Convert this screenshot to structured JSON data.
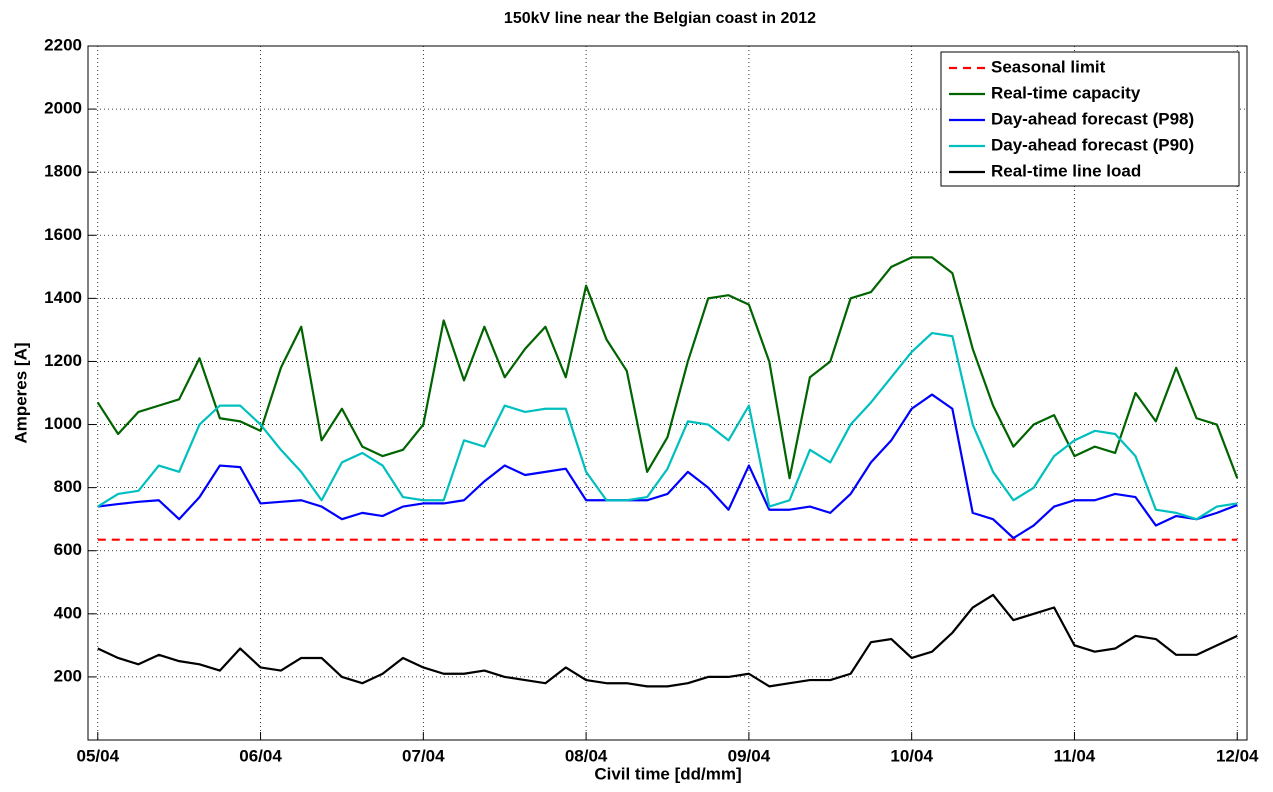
{
  "chart_data": {
    "type": "line",
    "title": "150kV line near the Belgian coast in 2012",
    "xlabel": "Civil time [dd/mm]",
    "ylabel": "Amperes [A]",
    "x": [
      5,
      5.125,
      5.25,
      5.375,
      5.5,
      5.625,
      5.75,
      5.875,
      6,
      6.125,
      6.25,
      6.375,
      6.5,
      6.625,
      6.75,
      6.875,
      7,
      7.125,
      7.25,
      7.375,
      7.5,
      7.625,
      7.75,
      7.875,
      8,
      8.125,
      8.25,
      8.375,
      8.5,
      8.625,
      8.75,
      8.875,
      9,
      9.125,
      9.25,
      9.375,
      9.5,
      9.625,
      9.75,
      9.875,
      10,
      10.125,
      10.25,
      10.375,
      10.5,
      10.625,
      10.75,
      10.875,
      11,
      11.125,
      11.25,
      11.375,
      11.5,
      11.625,
      11.75,
      11.875,
      12
    ],
    "xlim": [
      4.94,
      12.06
    ],
    "xticks": [
      {
        "value": 5,
        "label": "05/04"
      },
      {
        "value": 6,
        "label": "06/04"
      },
      {
        "value": 7,
        "label": "07/04"
      },
      {
        "value": 8,
        "label": "08/04"
      },
      {
        "value": 9,
        "label": "09/04"
      },
      {
        "value": 10,
        "label": "10/04"
      },
      {
        "value": 11,
        "label": "11/04"
      },
      {
        "value": 12,
        "label": "12/04"
      }
    ],
    "ylim": [
      0,
      2200
    ],
    "yticks": [
      200,
      400,
      600,
      800,
      1000,
      1200,
      1400,
      1600,
      1800,
      2000,
      2200
    ],
    "grid": true,
    "legend": "upper right",
    "series": [
      {
        "name": "Seasonal limit",
        "color": "#ff0000",
        "linestyle": "dashed",
        "values": [
          635,
          635,
          635,
          635,
          635,
          635,
          635,
          635,
          635,
          635,
          635,
          635,
          635,
          635,
          635,
          635,
          635,
          635,
          635,
          635,
          635,
          635,
          635,
          635,
          635,
          635,
          635,
          635,
          635,
          635,
          635,
          635,
          635,
          635,
          635,
          635,
          635,
          635,
          635,
          635,
          635,
          635,
          635,
          635,
          635,
          635,
          635,
          635,
          635,
          635,
          635,
          635,
          635,
          635,
          635,
          635,
          635
        ]
      },
      {
        "name": "Real-time capacity",
        "color": "#006400",
        "linestyle": "solid",
        "values": [
          1070,
          970,
          1040,
          1060,
          1080,
          1210,
          1020,
          1010,
          980,
          1180,
          1310,
          950,
          1050,
          930,
          900,
          920,
          1000,
          1330,
          1140,
          1310,
          1150,
          1240,
          1310,
          1150,
          1440,
          1270,
          1170,
          850,
          960,
          1200,
          1400,
          1410,
          1380,
          1200,
          830,
          1150,
          1200,
          1400,
          1420,
          1500,
          1530,
          1530,
          1480,
          1240,
          1060,
          930,
          1000,
          1030,
          900,
          930,
          910,
          1100,
          1010,
          1180,
          1020,
          1000,
          830
        ]
      },
      {
        "name": "Day-ahead forecast (P98)",
        "color": "#0000ff",
        "linestyle": "solid",
        "values": [
          740,
          748,
          755,
          760,
          700,
          770,
          870,
          865,
          750,
          755,
          760,
          740,
          700,
          720,
          710,
          740,
          750,
          750,
          760,
          820,
          870,
          840,
          850,
          860,
          760,
          760,
          760,
          760,
          780,
          850,
          800,
          730,
          870,
          730,
          730,
          740,
          720,
          780,
          880,
          950,
          1050,
          1095,
          1050,
          720,
          700,
          640,
          680,
          740,
          760,
          760,
          780,
          770,
          680,
          710,
          700,
          720,
          745
        ]
      },
      {
        "name": "Day-ahead forecast (P90)",
        "color": "#00bfbf",
        "linestyle": "solid",
        "values": [
          740,
          780,
          790,
          870,
          850,
          1000,
          1060,
          1060,
          1000,
          920,
          850,
          760,
          880,
          910,
          870,
          770,
          760,
          760,
          950,
          930,
          1060,
          1040,
          1050,
          1050,
          850,
          760,
          760,
          770,
          860,
          1010,
          1000,
          950,
          1060,
          740,
          760,
          920,
          880,
          1000,
          1070,
          1150,
          1230,
          1290,
          1280,
          1000,
          850,
          760,
          800,
          900,
          950,
          980,
          970,
          900,
          730,
          720,
          700,
          740,
          750
        ]
      },
      {
        "name": "Real-time line load",
        "color": "#000000",
        "linestyle": "solid",
        "values": [
          290,
          260,
          240,
          270,
          250,
          240,
          220,
          290,
          230,
          220,
          260,
          260,
          200,
          180,
          210,
          260,
          230,
          210,
          210,
          220,
          200,
          190,
          180,
          230,
          190,
          180,
          180,
          170,
          170,
          180,
          200,
          200,
          210,
          170,
          180,
          190,
          190,
          210,
          310,
          320,
          260,
          280,
          340,
          420,
          460,
          380,
          400,
          420,
          300,
          280,
          290,
          330,
          320,
          270,
          270,
          300,
          330
        ]
      }
    ]
  }
}
